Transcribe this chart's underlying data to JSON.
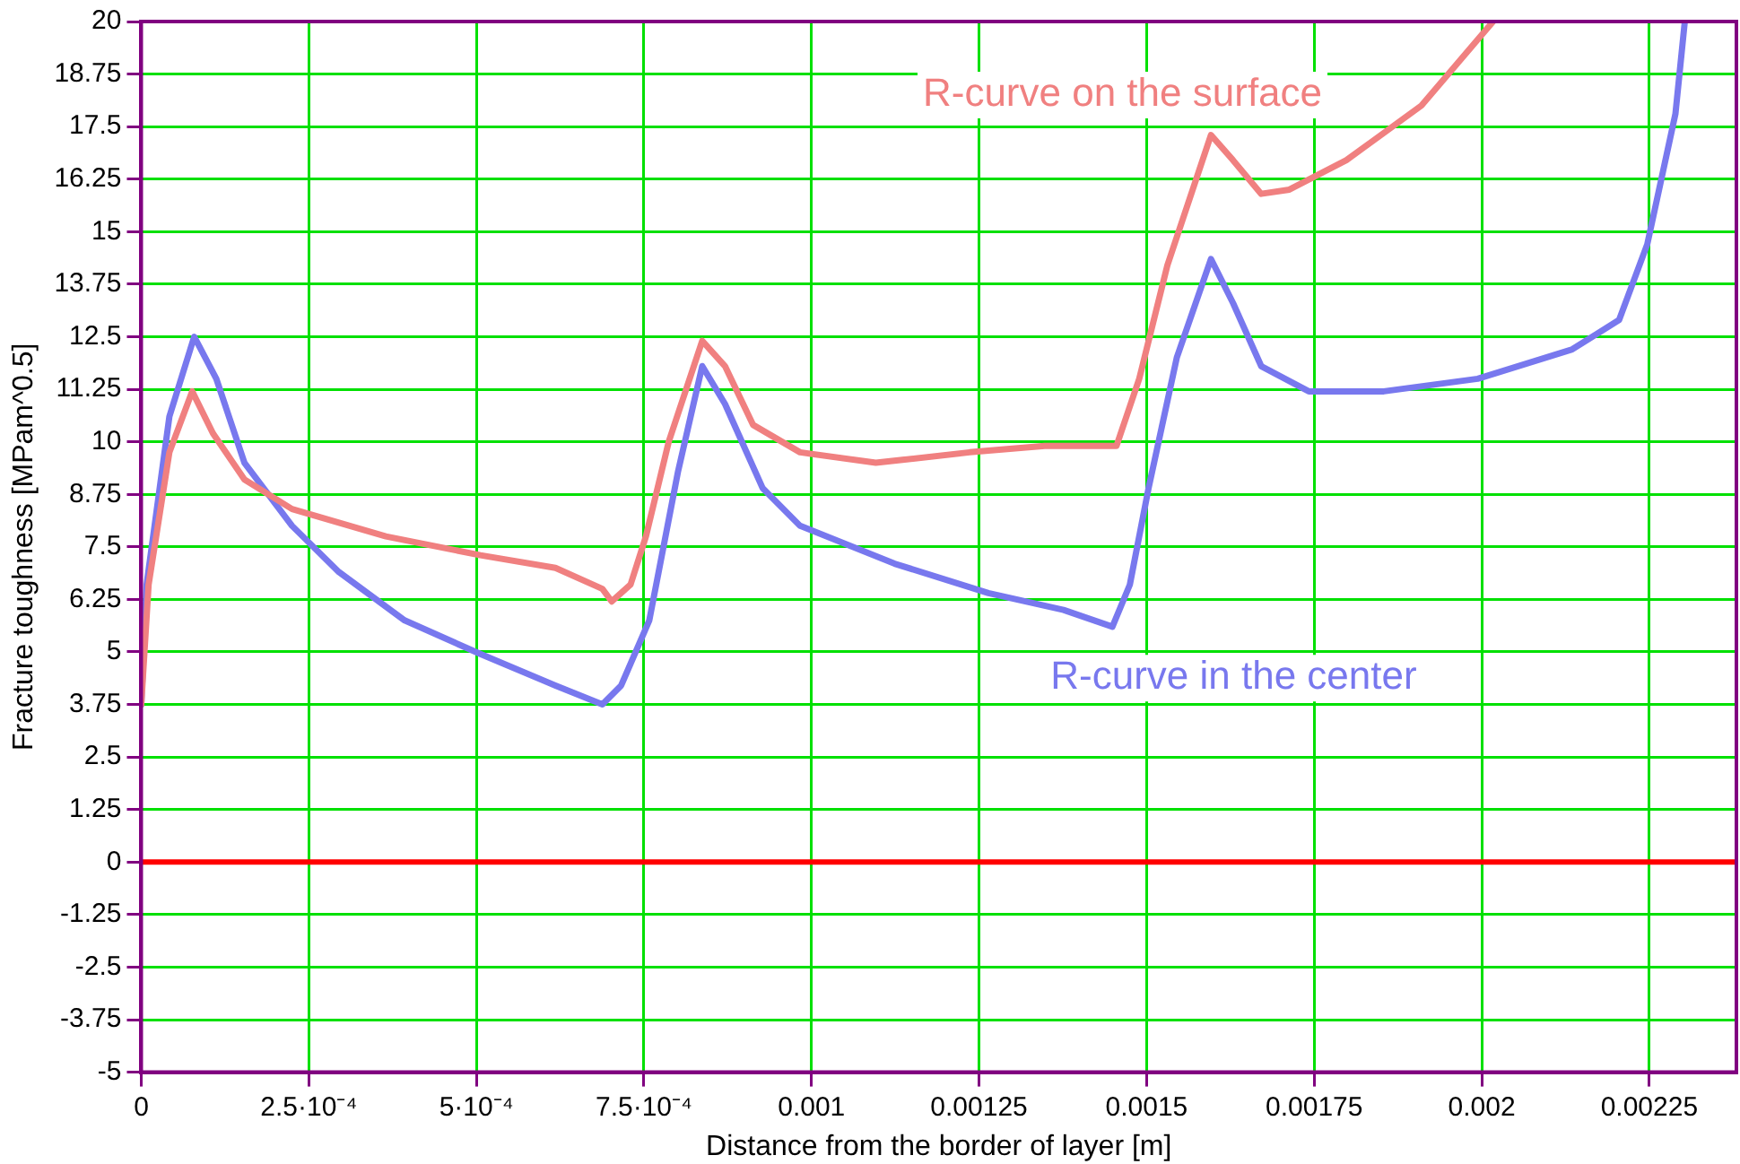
{
  "chart_data": {
    "type": "line",
    "xlabel": "Distance from the border of layer [m]",
    "ylabel": "Fracture toughness [MPam^0.5]",
    "xlim": [
      0,
      0.00238
    ],
    "ylim": [
      -5,
      20
    ],
    "xticks": [
      0,
      {
        "value": 0.00025,
        "label": "2.5·10⁻⁴"
      },
      {
        "value": 0.0005,
        "label": "5·10⁻⁴"
      },
      {
        "value": 0.00075,
        "label": "7.5·10⁻⁴"
      },
      0.001,
      0.00125,
      0.0015,
      0.00175,
      0.002,
      0.00225
    ],
    "yticks": [
      -5,
      -3.75,
      -2.5,
      -1.25,
      0,
      1.25,
      2.5,
      3.75,
      5,
      6.25,
      7.5,
      8.75,
      10,
      11.25,
      12.5,
      13.75,
      15,
      16.25,
      17.5,
      18.75,
      20
    ],
    "grid": true,
    "legend": false,
    "marker": "none",
    "line_style": "solid",
    "ref_lines": [
      {
        "axis": "y",
        "value": 0,
        "color": "#ff0000"
      }
    ],
    "series": [
      {
        "name": "R-curve on the surface",
        "color": "#f08080",
        "x": [
          0,
          1.1e-05,
          4.2e-05,
          7.6e-05,
          0.000107,
          0.000154,
          0.000225,
          0.000365,
          0.000506,
          0.000618,
          0.000688,
          0.000702,
          0.00073,
          0.000753,
          0.000787,
          0.000837,
          0.000871,
          0.000913,
          0.000983,
          0.001096,
          0.001236,
          0.001348,
          0.001455,
          0.001489,
          0.001531,
          0.001596,
          0.001629,
          0.001671,
          0.001713,
          0.001798,
          0.00191,
          0.002017
        ],
        "values": [
          3.75,
          6.6,
          9.75,
          11.2,
          10.2,
          9.1,
          8.4,
          7.75,
          7.3,
          7,
          6.5,
          6.2,
          6.6,
          7.75,
          10,
          12.4,
          11.8,
          10.4,
          9.75,
          9.5,
          9.75,
          9.9,
          9.9,
          11.5,
          14.2,
          17.3,
          16.7,
          15.9,
          16,
          16.7,
          18,
          20
        ]
      },
      {
        "name": "R-curve in the center",
        "color": "#7878ee",
        "x": [
          0,
          8e-06,
          4.2e-05,
          7.9e-05,
          0.000112,
          0.000154,
          0.000225,
          0.000295,
          0.000393,
          0.000506,
          0.000618,
          0.000688,
          0.000716,
          0.000758,
          0.000801,
          0.000837,
          0.000871,
          0.000927,
          0.000983,
          0.001124,
          0.001264,
          0.001376,
          0.001449,
          0.001475,
          0.001503,
          0.001545,
          0.001596,
          0.001629,
          0.001671,
          0.001742,
          0.001854,
          0.001994,
          0.002135,
          0.002205,
          0.002247,
          0.002289,
          0.002303
        ],
        "values": [
          3.75,
          6.6,
          10.6,
          12.5,
          11.5,
          9.5,
          8,
          6.9,
          5.75,
          4.95,
          4.2,
          3.75,
          4.2,
          5.75,
          9.3,
          11.8,
          10.9,
          8.9,
          8,
          7.1,
          6.4,
          6,
          5.6,
          6.6,
          8.9,
          12,
          14.35,
          13.3,
          11.8,
          11.2,
          11.2,
          11.5,
          12.2,
          12.9,
          14.7,
          17.8,
          20
        ]
      }
    ]
  }
}
